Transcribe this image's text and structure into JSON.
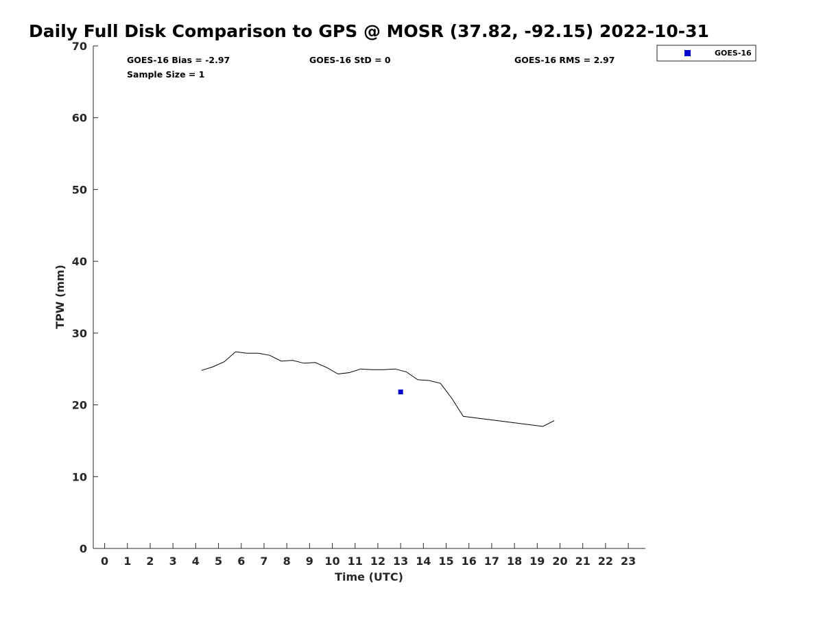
{
  "chart_data": {
    "type": "line",
    "title": "Daily Full Disk Comparison to GPS @ MOSR (37.82, -92.15) 2022-10-31",
    "xlabel": "Time (UTC)",
    "ylabel": "TPW (mm)",
    "xlim": [
      -0.5,
      23.75
    ],
    "ylim": [
      0,
      70
    ],
    "x_ticks": [
      "0",
      "1",
      "2",
      "3",
      "4",
      "5",
      "6",
      "7",
      "8",
      "9",
      "10",
      "11",
      "12",
      "13",
      "14",
      "15",
      "16",
      "17",
      "18",
      "19",
      "20",
      "21",
      "22",
      "23"
    ],
    "y_ticks": [
      "0",
      "10",
      "20",
      "30",
      "40",
      "50",
      "60",
      "70"
    ],
    "grid": false,
    "legend_position": "top-right (outside axes)",
    "stats": {
      "bias": "GOES-16 Bias = -2.97",
      "std": "GOES-16 StD = 0",
      "rms": "GOES-16 RMS = 2.97",
      "sample": "Sample Size = 1"
    },
    "series": [
      {
        "kind": "line",
        "color": "#000000",
        "x": [
          4.25,
          4.75,
          5.25,
          5.75,
          6.25,
          6.75,
          7.25,
          7.75,
          8.25,
          8.75,
          9.25,
          9.75,
          10.25,
          10.75,
          11.25,
          11.75,
          12.25,
          12.75,
          13.25,
          13.75,
          14.25,
          14.75,
          15.25,
          15.75,
          19.25,
          19.75
        ],
        "values": [
          24.8,
          25.3,
          26.0,
          27.4,
          27.2,
          27.2,
          26.9,
          26.1,
          26.2,
          25.8,
          25.9,
          25.2,
          24.3,
          24.5,
          25.0,
          24.9,
          24.9,
          25.0,
          24.6,
          23.5,
          23.4,
          23.0,
          20.9,
          18.4,
          17.0,
          17.8
        ]
      },
      {
        "kind": "scatter",
        "name": "GOES-16",
        "color": "#0000cc",
        "x": [
          13.0
        ],
        "values": [
          21.8
        ]
      }
    ]
  }
}
